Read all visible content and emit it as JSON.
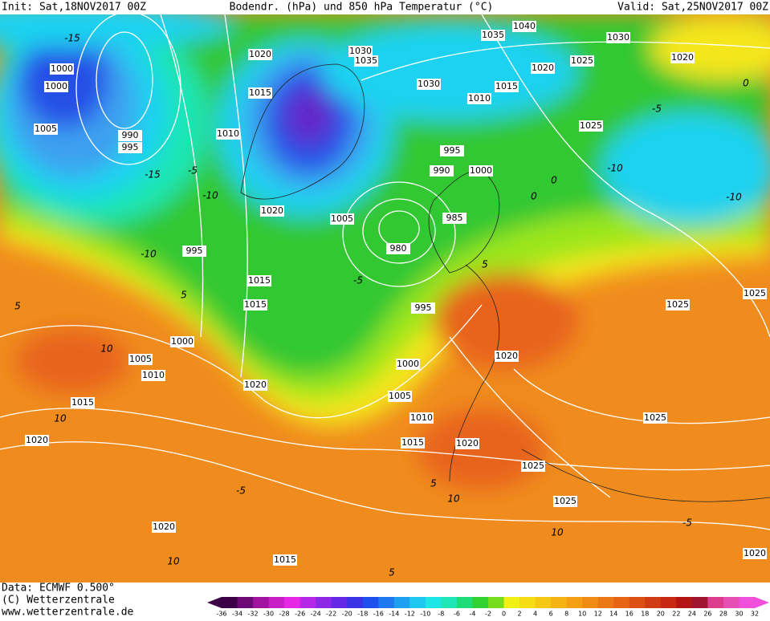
{
  "header": {
    "init": "Init: Sat,18NOV2017 00Z",
    "title": "Bodendr. (hPa) und 850 hPa Temperatur (°C)",
    "valid": "Valid: Sat,25NOV2017 00Z"
  },
  "footer": {
    "data": "Data: ECMWF   0.500°",
    "copyright": "(C) Wetterzentrale",
    "url": "www.wetterzentrale.de"
  },
  "isobar_labels": [
    1000,
    1000,
    1005,
    990,
    995,
    1010,
    1015,
    1020,
    1035,
    1030,
    1035,
    1040,
    1030,
    1020,
    1020,
    1025,
    1030,
    1015,
    1010,
    1025,
    995,
    990,
    1000,
    1020,
    1005,
    985,
    980,
    995,
    1015,
    1015,
    995,
    1025,
    1025,
    1000,
    1005,
    1010,
    1020,
    1000,
    1015,
    1020,
    1005,
    1010,
    1025,
    1020,
    1015,
    1020,
    1025,
    1025,
    1020,
    1015,
    1020
  ],
  "temperature_labels": [
    -15,
    -15,
    -10,
    -5,
    -10,
    -5,
    0,
    5,
    10,
    10,
    -5,
    0,
    -5,
    -10,
    -10,
    0,
    5,
    5,
    -5,
    10,
    10,
    10,
    5,
    5
  ],
  "scale": {
    "labels": [
      -36,
      -34,
      -32,
      -30,
      -28,
      -26,
      -24,
      -22,
      -20,
      -18,
      -16,
      -14,
      -12,
      -10,
      -8,
      -6,
      -4,
      -2,
      0,
      2,
      4,
      6,
      8,
      10,
      12,
      14,
      16,
      18,
      20,
      22,
      24,
      26,
      28,
      30,
      32
    ],
    "colors": [
      "#3c0046",
      "#6e0a78",
      "#a014a0",
      "#c81ec8",
      "#e628e6",
      "#b428e6",
      "#8c28e6",
      "#6428e6",
      "#3c32e6",
      "#1e50f0",
      "#1e78f0",
      "#1ea0f0",
      "#1ec8f0",
      "#1ee6e6",
      "#1ee6b4",
      "#1edc78",
      "#32d232",
      "#78dc1e",
      "#f0f014",
      "#f5dc14",
      "#f5c814",
      "#f5b414",
      "#f5a014",
      "#f08c14",
      "#eb7814",
      "#e66414",
      "#dc5014",
      "#d23c14",
      "#c82814",
      "#b41414",
      "#a01432",
      "#dc3c8c",
      "#e650b4",
      "#f050dc"
    ]
  }
}
